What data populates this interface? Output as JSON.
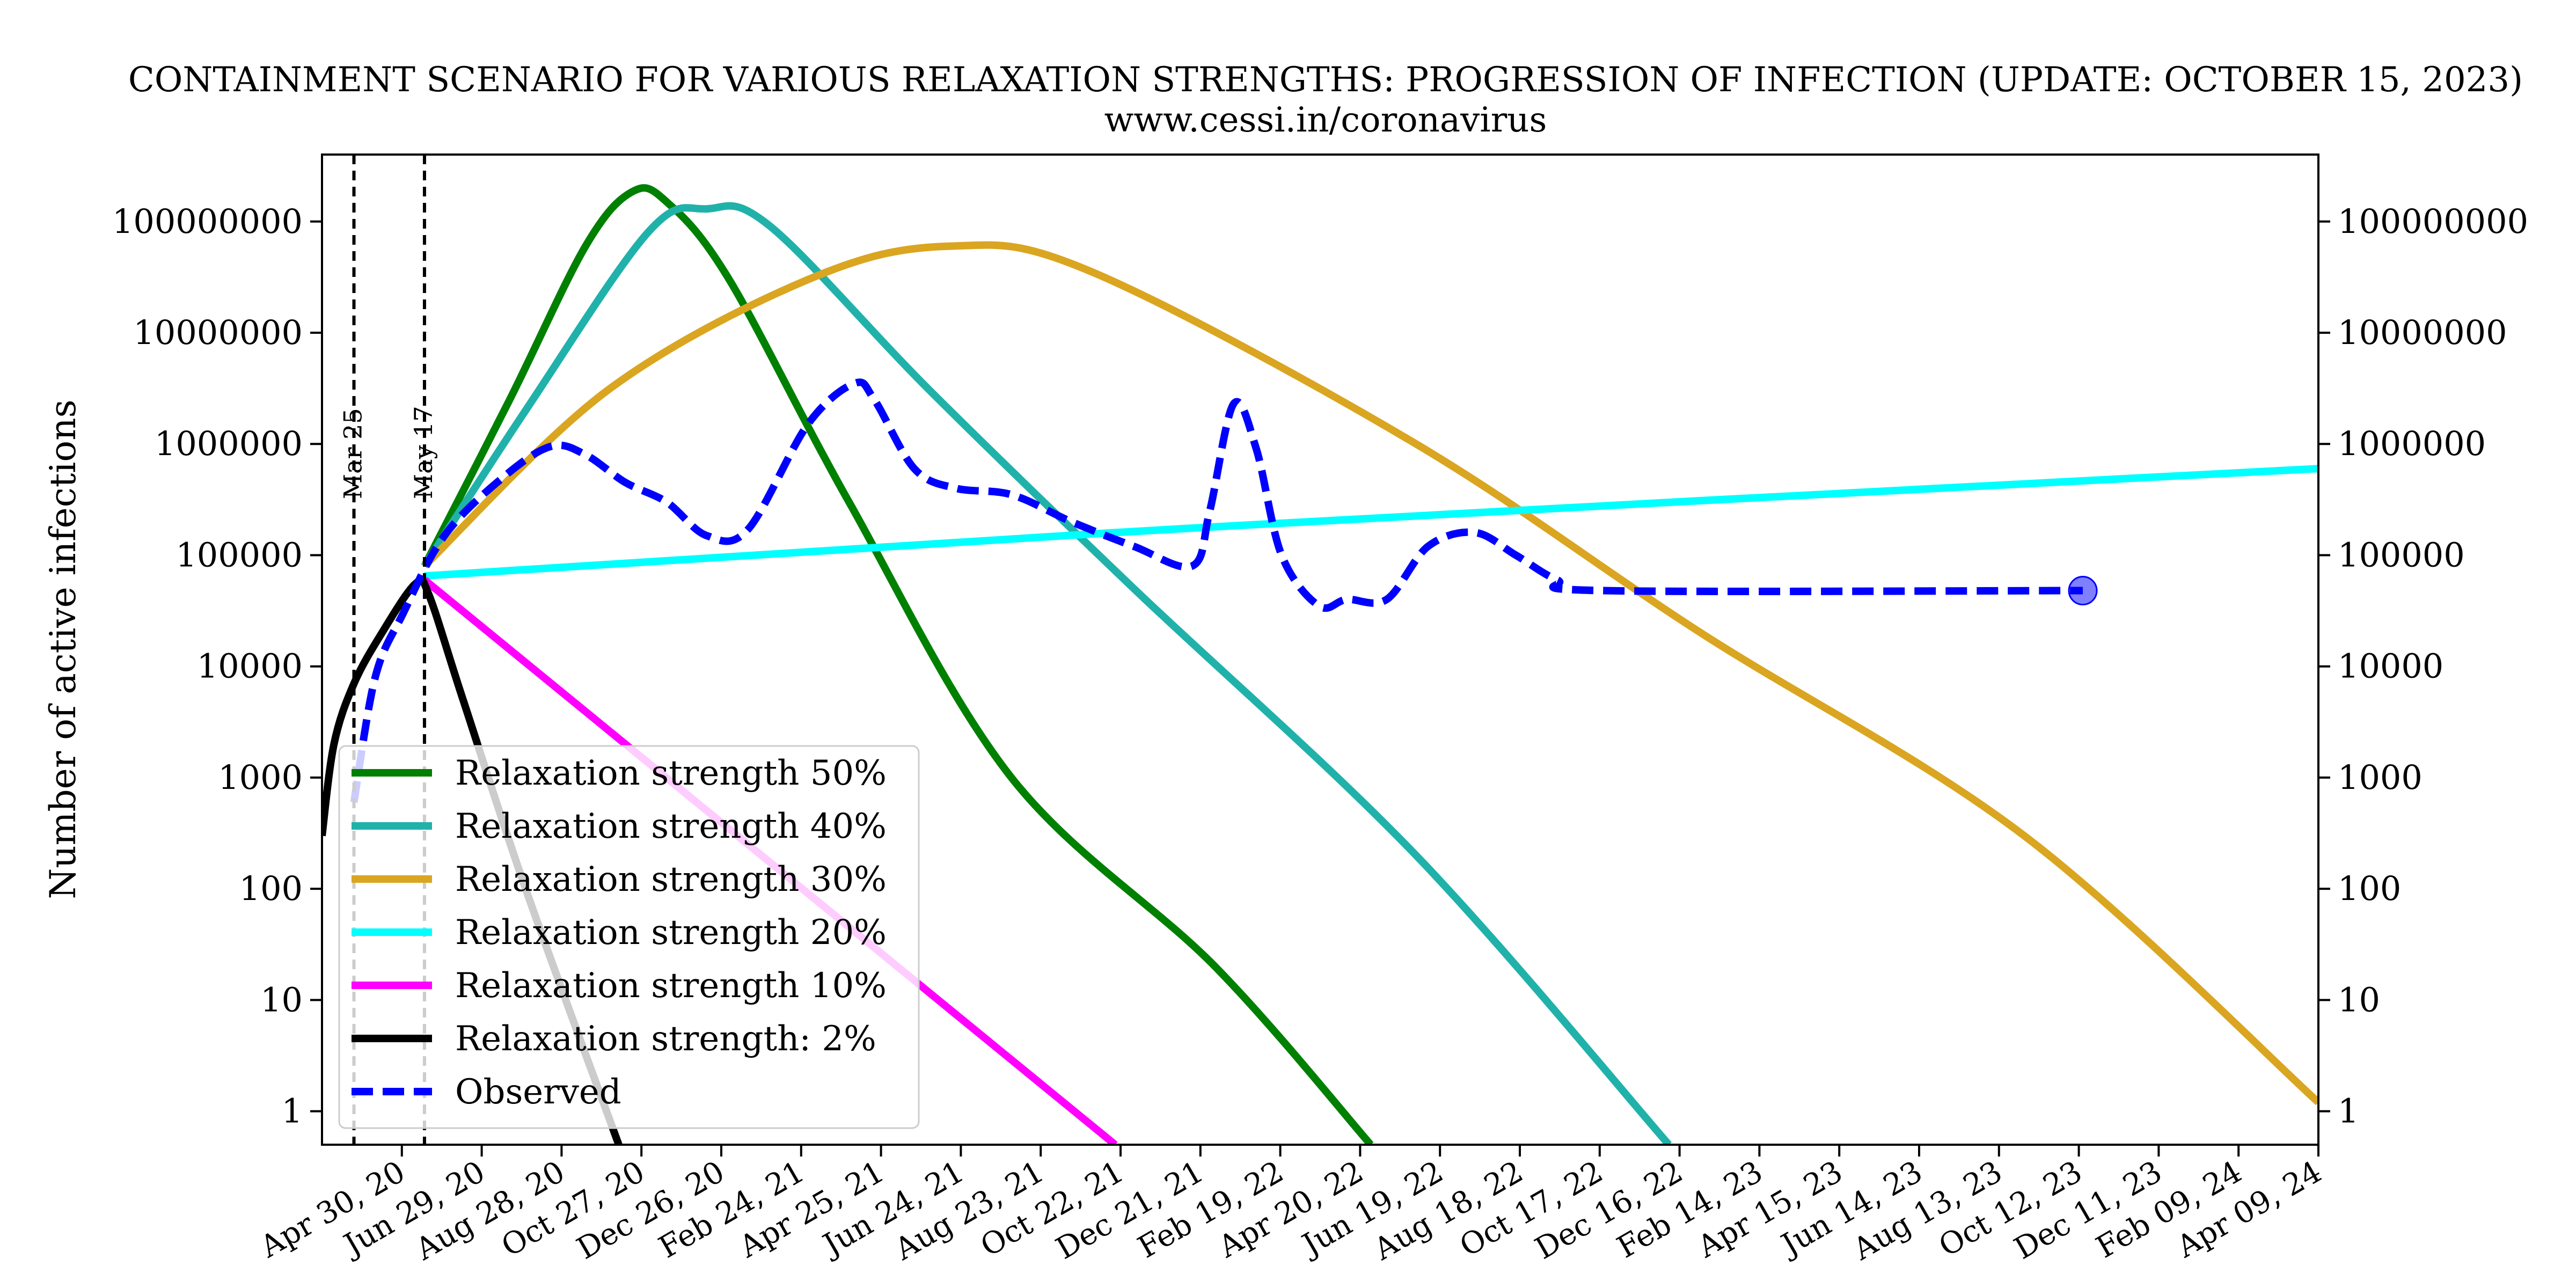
{
  "chart_data": {
    "type": "line",
    "title": "CONTAINMENT SCENARIO FOR VARIOUS RELAXATION STRENGTHS: PROGRESSION OF INFECTION (UPDATE: OCTOBER 15, 2023)",
    "subtitle": "www.cessi.in/coronavirus",
    "xlabel": "",
    "ylabel": "Number of active infections",
    "y_scale": "log",
    "ylim": [
      0.5,
      400000000
    ],
    "xlim": [
      "2020-03-01",
      "2024-04-09"
    ],
    "y_ticks": [
      {
        "value": 1,
        "label": "1"
      },
      {
        "value": 10,
        "label": "10"
      },
      {
        "value": 100,
        "label": "100"
      },
      {
        "value": 1000,
        "label": "1000"
      },
      {
        "value": 10000,
        "label": "10000"
      },
      {
        "value": 100000,
        "label": "100000"
      },
      {
        "value": 1000000,
        "label": "1000000"
      },
      {
        "value": 10000000,
        "label": "10000000"
      },
      {
        "value": 100000000,
        "label": "100000000"
      }
    ],
    "x_ticks": [
      {
        "date": "2020-04-30",
        "label": "Apr 30, 20"
      },
      {
        "date": "2020-06-29",
        "label": "Jun 29, 20"
      },
      {
        "date": "2020-08-28",
        "label": "Aug 28, 20"
      },
      {
        "date": "2020-10-27",
        "label": "Oct 27, 20"
      },
      {
        "date": "2020-12-26",
        "label": "Dec 26, 20"
      },
      {
        "date": "2021-02-24",
        "label": "Feb 24, 21"
      },
      {
        "date": "2021-04-25",
        "label": "Apr 25, 21"
      },
      {
        "date": "2021-06-24",
        "label": "Jun 24, 21"
      },
      {
        "date": "2021-08-23",
        "label": "Aug 23, 21"
      },
      {
        "date": "2021-10-22",
        "label": "Oct 22, 21"
      },
      {
        "date": "2021-12-21",
        "label": "Dec 21, 21"
      },
      {
        "date": "2022-02-19",
        "label": "Feb 19, 22"
      },
      {
        "date": "2022-04-20",
        "label": "Apr 20, 22"
      },
      {
        "date": "2022-06-19",
        "label": "Jun 19, 22"
      },
      {
        "date": "2022-08-18",
        "label": "Aug 18, 22"
      },
      {
        "date": "2022-10-17",
        "label": "Oct 17, 22"
      },
      {
        "date": "2022-12-16",
        "label": "Dec 16, 22"
      },
      {
        "date": "2023-02-14",
        "label": "Feb 14, 23"
      },
      {
        "date": "2023-04-15",
        "label": "Apr 15, 23"
      },
      {
        "date": "2023-06-14",
        "label": "Jun 14, 23"
      },
      {
        "date": "2023-08-13",
        "label": "Aug 13, 23"
      },
      {
        "date": "2023-10-12",
        "label": "Oct 12, 23"
      },
      {
        "date": "2023-12-11",
        "label": "Dec 11, 23"
      },
      {
        "date": "2024-02-09",
        "label": "Feb 09, 24"
      },
      {
        "date": "2024-04-09",
        "label": "Apr 09, 24"
      }
    ],
    "vlines": [
      {
        "date": "2020-03-25",
        "label": "Mar 25"
      },
      {
        "date": "2020-05-17",
        "label": "May 17"
      }
    ],
    "series": [
      {
        "name": "Relaxation strength 50%",
        "color": "#008000",
        "style": "solid",
        "points": [
          [
            "2020-05-17",
            80000
          ],
          [
            "2020-07-20",
            2500000
          ],
          [
            "2020-09-15",
            60000000
          ],
          [
            "2020-10-20",
            185000000
          ],
          [
            "2020-11-15",
            150000000
          ],
          [
            "2021-01-01",
            30000000
          ],
          [
            "2021-04-01",
            300000
          ],
          [
            "2021-08-01",
            1000
          ],
          [
            "2022-01-01",
            20
          ],
          [
            "2022-04-28",
            0.5
          ]
        ]
      },
      {
        "name": "Relaxation strength 40%",
        "color": "#20B2AA",
        "style": "solid",
        "points": [
          [
            "2020-05-17",
            80000
          ],
          [
            "2020-08-01",
            2000000
          ],
          [
            "2020-11-01",
            80000000
          ],
          [
            "2020-12-15",
            130000000
          ],
          [
            "2021-02-01",
            90000000
          ],
          [
            "2021-06-01",
            3000000
          ],
          [
            "2021-11-01",
            50000
          ],
          [
            "2022-06-01",
            200
          ],
          [
            "2022-12-08",
            0.5
          ]
        ]
      },
      {
        "name": "Relaxation strength 30%",
        "color": "#DAA520",
        "style": "solid",
        "points": [
          [
            "2020-05-17",
            80000
          ],
          [
            "2020-10-01",
            3000000
          ],
          [
            "2021-03-01",
            30000000
          ],
          [
            "2021-06-15",
            60000000
          ],
          [
            "2021-10-01",
            35000000
          ],
          [
            "2022-06-01",
            1000000
          ],
          [
            "2023-01-01",
            20000
          ],
          [
            "2023-09-01",
            300
          ],
          [
            "2024-04-09",
            1.2
          ]
        ]
      },
      {
        "name": "Relaxation strength 20%",
        "color": "#00FFFF",
        "style": "solid",
        "points": [
          [
            "2020-05-17",
            65000
          ],
          [
            "2022-01-01",
            180000
          ],
          [
            "2024-04-09",
            600000
          ]
        ]
      },
      {
        "name": "Relaxation strength 10%",
        "color": "#FF00FF",
        "style": "solid",
        "points": [
          [
            "2020-05-17",
            60000
          ],
          [
            "2021-10-18",
            0.5
          ]
        ]
      },
      {
        "name": "Relaxation strength: 2%",
        "color": "#000000",
        "style": "solid",
        "points": [
          [
            "2020-03-01",
            300
          ],
          [
            "2020-03-10",
            2000
          ],
          [
            "2020-03-25",
            7000
          ],
          [
            "2020-04-15",
            20000
          ],
          [
            "2020-05-10",
            55000
          ],
          [
            "2020-05-20",
            45000
          ],
          [
            "2020-06-15",
            5000
          ],
          [
            "2020-08-01",
            100
          ],
          [
            "2020-10-10",
            0.5
          ]
        ]
      },
      {
        "name": "Observed",
        "color": "#0000FF",
        "style": "dashed",
        "points": [
          [
            "2020-03-25",
            600
          ],
          [
            "2020-04-10",
            8000
          ],
          [
            "2020-05-01",
            30000
          ],
          [
            "2020-06-01",
            150000
          ],
          [
            "2020-07-15",
            500000
          ],
          [
            "2020-08-20",
            950000
          ],
          [
            "2020-09-15",
            800000
          ],
          [
            "2020-10-15",
            450000
          ],
          [
            "2020-11-15",
            300000
          ],
          [
            "2020-12-15",
            150000
          ],
          [
            "2021-01-15",
            170000
          ],
          [
            "2021-03-01",
            1500000
          ],
          [
            "2021-04-05",
            3500000
          ],
          [
            "2021-04-20",
            2500000
          ],
          [
            "2021-05-20",
            600000
          ],
          [
            "2021-06-20",
            400000
          ],
          [
            "2021-08-01",
            350000
          ],
          [
            "2021-09-15",
            200000
          ],
          [
            "2021-11-01",
            120000
          ],
          [
            "2021-12-15",
            80000
          ],
          [
            "2021-12-28",
            250000
          ],
          [
            "2022-01-15",
            2300000
          ],
          [
            "2022-02-01",
            900000
          ],
          [
            "2022-02-20",
            100000
          ],
          [
            "2022-03-20",
            35000
          ],
          [
            "2022-04-10",
            40000
          ],
          [
            "2022-05-10",
            40000
          ],
          [
            "2022-06-10",
            120000
          ],
          [
            "2022-07-15",
            160000
          ],
          [
            "2022-08-15",
            100000
          ],
          [
            "2022-09-15",
            60000
          ],
          [
            "2022-10-20",
            48000
          ],
          [
            "2023-10-15",
            48000
          ]
        ]
      }
    ],
    "last_observed": {
      "date": "2023-10-15",
      "value": 48000
    },
    "grid": false,
    "legend_position": "lower-left",
    "twin_y_axis": true
  }
}
